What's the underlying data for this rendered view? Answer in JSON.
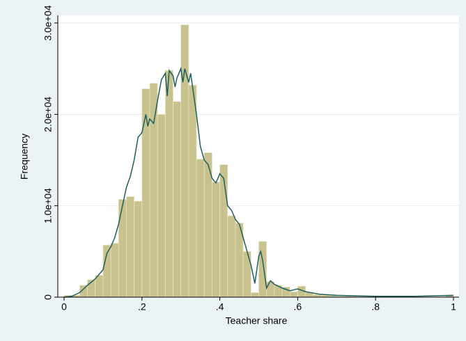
{
  "chart_data": {
    "type": "histogram",
    "xlabel": "Teacher share",
    "ylabel": "Frequency",
    "bins": [
      0,
      0.02,
      0.04,
      0.06,
      0.08,
      0.1,
      0.12,
      0.14,
      0.16,
      0.18,
      0.2,
      0.22,
      0.24,
      0.26,
      0.28,
      0.3,
      0.32,
      0.34,
      0.36,
      0.38,
      0.4,
      0.42,
      0.44,
      0.46,
      0.48,
      0.5,
      0.52,
      0.54,
      0.56,
      0.58,
      0.6,
      0.62,
      0.64,
      0.66,
      0.68,
      0.7,
      0.72,
      0.74,
      0.76,
      0.78,
      0.8,
      0.82,
      0.84,
      0.86,
      0.88,
      0.9,
      0.92,
      0.94,
      0.96,
      0.98,
      1
    ],
    "values": [
      200,
      200,
      1300,
      1900,
      2400,
      5700,
      5900,
      10700,
      11000,
      10500,
      22800,
      23400,
      20000,
      24800,
      21400,
      29800,
      23200,
      15100,
      15800,
      12600,
      14500,
      8900,
      8100,
      5000,
      500,
      6100,
      1700,
      1300,
      1100,
      600,
      1200,
      500,
      300,
      200,
      150,
      100,
      100,
      80,
      60,
      50,
      50,
      40,
      40,
      30,
      30,
      20,
      20,
      20,
      30,
      200
    ],
    "color": "#c8c28e",
    "curve": {
      "color": "#1f5f5c",
      "x": [
        0,
        0.02,
        0.04,
        0.06,
        0.08,
        0.1,
        0.11,
        0.12,
        0.13,
        0.14,
        0.15,
        0.16,
        0.17,
        0.18,
        0.19,
        0.2,
        0.21,
        0.215,
        0.22,
        0.23,
        0.24,
        0.25,
        0.26,
        0.265,
        0.27,
        0.28,
        0.285,
        0.29,
        0.3,
        0.305,
        0.31,
        0.32,
        0.325,
        0.33,
        0.34,
        0.35,
        0.36,
        0.37,
        0.38,
        0.39,
        0.4,
        0.41,
        0.42,
        0.43,
        0.44,
        0.45,
        0.46,
        0.47,
        0.48,
        0.49,
        0.5,
        0.505,
        0.51,
        0.52,
        0.53,
        0.54,
        0.56,
        0.58,
        0.6,
        0.62,
        0.66,
        0.7,
        0.8,
        0.9,
        1
      ],
      "values": [
        0,
        100,
        500,
        1300,
        2000,
        3000,
        4800,
        5500,
        6500,
        8000,
        10000,
        12000,
        13200,
        15000,
        17500,
        18000,
        20000,
        18700,
        19500,
        19000,
        21500,
        23800,
        24500,
        22000,
        24800,
        24200,
        23000,
        24000,
        25000,
        23500,
        25000,
        23500,
        24500,
        23000,
        20000,
        16500,
        15000,
        14500,
        13000,
        12500,
        13500,
        13000,
        10000,
        9500,
        8500,
        8000,
        6500,
        5000,
        3500,
        1500,
        4500,
        5000,
        4000,
        1000,
        1800,
        1400,
        1000,
        700,
        900,
        600,
        300,
        200,
        100,
        100,
        200
      ]
    },
    "xlim": [
      0,
      1
    ],
    "ylim": [
      0,
      30000
    ],
    "xticks": [
      0,
      {
        "value": 0.2,
        "label": ".2"
      },
      {
        "value": 0.4,
        "label": ".4"
      },
      {
        "value": 0.6,
        "label": ".6"
      },
      {
        "value": 0.8,
        "label": ".8"
      },
      1
    ],
    "yticks": [
      0,
      {
        "value": 10000,
        "label": "1.0e+04"
      },
      {
        "value": 20000,
        "label": "2.0e+04"
      },
      {
        "value": 30000,
        "label": "3.0e+04"
      }
    ],
    "grid": true
  }
}
